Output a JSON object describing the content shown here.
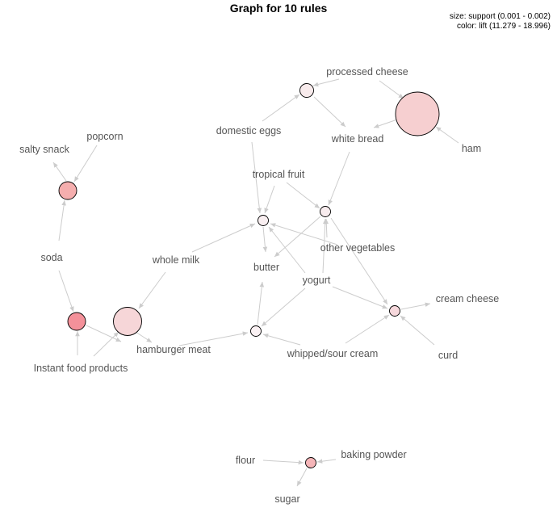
{
  "title": "Graph for 10 rules",
  "legend": {
    "size": "size: support (0.001 - 0.002)",
    "color": "color: lift (11.279 - 18.996)"
  },
  "items": {
    "processed_cheese": "processed cheese",
    "domestic_eggs": "domestic eggs",
    "white_bread": "white bread",
    "ham": "ham",
    "popcorn": "popcorn",
    "salty_snack": "salty snack",
    "tropical_fruit": "tropical fruit",
    "soda": "soda",
    "whole_milk": "whole milk",
    "butter": "butter",
    "other_vegetables": "other vegetables",
    "yogurt": "yogurt",
    "cream_cheese": "cream cheese",
    "hamburger_meat": "hamburger meat",
    "whipped_sour_cream": "whipped/sour cream",
    "curd": "curd",
    "instant_food_products": "Instant food products",
    "flour": "flour",
    "baking_powder": "baking powder",
    "sugar": "sugar"
  },
  "rules": [
    {
      "id": "rule-1",
      "lhs": [
        "Instant food products",
        "soda"
      ],
      "rhs": [
        "hamburger meat"
      ],
      "fill": "#f4919a"
    },
    {
      "id": "rule-2",
      "lhs": [
        "soda",
        "popcorn"
      ],
      "rhs": [
        "salty snack"
      ],
      "fill": "#f5aeae"
    },
    {
      "id": "rule-3",
      "lhs": [
        "flour",
        "baking powder"
      ],
      "rhs": [
        "sugar"
      ],
      "fill": "#f5b5b8"
    },
    {
      "id": "rule-4",
      "lhs": [
        "ham",
        "processed cheese"
      ],
      "rhs": [
        "white bread"
      ],
      "fill": "#f6cfd0"
    },
    {
      "id": "rule-5",
      "lhs": [
        "whole milk",
        "Instant food products"
      ],
      "rhs": [
        "hamburger meat"
      ],
      "fill": "#f6d6d8"
    },
    {
      "id": "rule-6",
      "lhs": [
        "curd",
        "other vegetables",
        "whipped/sour cream",
        "yogurt"
      ],
      "rhs": [
        "cream cheese"
      ],
      "fill": "#f6d8dc"
    },
    {
      "id": "rule-7",
      "lhs": [
        "domestic eggs",
        "processed cheese"
      ],
      "rhs": [
        "white bread"
      ],
      "fill": "#f8ebec"
    },
    {
      "id": "rule-8",
      "lhs": [
        "tropical fruit",
        "other vegetables",
        "yogurt",
        "white bread"
      ],
      "rhs": [
        "butter"
      ],
      "fill": "#f8ecee"
    },
    {
      "id": "rule-9",
      "lhs": [
        "tropical fruit",
        "domestic eggs",
        "whole milk",
        "other vegetables",
        "yogurt"
      ],
      "rhs": [
        "butter"
      ],
      "fill": "#f9eff1"
    },
    {
      "id": "rule-10",
      "lhs": [
        "yogurt",
        "hamburger meat",
        "whipped/sour cream"
      ],
      "rhs": [
        "butter"
      ],
      "fill": "#faf1f3"
    }
  ]
}
